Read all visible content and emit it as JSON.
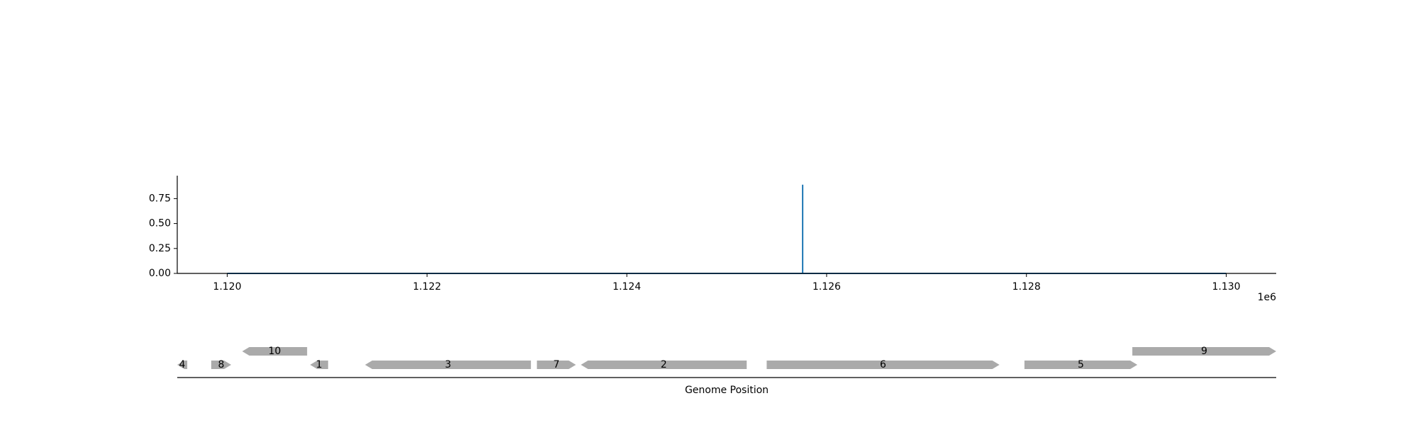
{
  "chart_data": [
    {
      "type": "line",
      "title": "",
      "xlabel": "",
      "ylabel": "",
      "xlim": [
        1119500,
        1130500
      ],
      "ylim": [
        0,
        0.98
      ],
      "x_ticks": [
        1120000,
        1122000,
        1124000,
        1126000,
        1128000,
        1130000
      ],
      "x_tick_labels": [
        "1.120",
        "1.122",
        "1.124",
        "1.126",
        "1.128",
        "1.130"
      ],
      "x_offset_label": "1e6",
      "y_ticks": [
        0.0,
        0.25,
        0.5,
        0.75
      ],
      "y_tick_labels": [
        "0.00",
        "0.25",
        "0.50",
        "0.75"
      ],
      "grid": false,
      "series": [
        {
          "x": [
            1120000,
            1125760,
            1125760,
            1125760,
            1130000
          ],
          "y": [
            0,
            0,
            0.89,
            0,
            0
          ],
          "color": "#1f77b4"
        }
      ]
    },
    {
      "type": "gene-map",
      "xlabel": "Genome Position",
      "xlim": [
        1119500,
        1130500
      ],
      "grid": false,
      "feature_color": "#aaaaaa",
      "features": [
        {
          "label": "4",
          "start": 1119500,
          "end": 1119600,
          "strand": -1,
          "row": 0
        },
        {
          "label": "8",
          "start": 1119840,
          "end": 1120040,
          "strand": 1,
          "row": 0
        },
        {
          "label": "10",
          "start": 1120150,
          "end": 1120800,
          "strand": -1,
          "row": 1
        },
        {
          "label": "1",
          "start": 1120830,
          "end": 1121010,
          "strand": -1,
          "row": 0
        },
        {
          "label": "3",
          "start": 1121380,
          "end": 1123040,
          "strand": -1,
          "row": 0
        },
        {
          "label": "7",
          "start": 1123100,
          "end": 1123490,
          "strand": 1,
          "row": 0
        },
        {
          "label": "2",
          "start": 1123540,
          "end": 1125200,
          "strand": -1,
          "row": 0
        },
        {
          "label": "6",
          "start": 1125400,
          "end": 1127730,
          "strand": 1,
          "row": 0
        },
        {
          "label": "5",
          "start": 1127980,
          "end": 1129110,
          "strand": 1,
          "row": 0
        },
        {
          "label": "9",
          "start": 1129060,
          "end": 1130500,
          "strand": 1,
          "row": 1
        }
      ]
    }
  ]
}
